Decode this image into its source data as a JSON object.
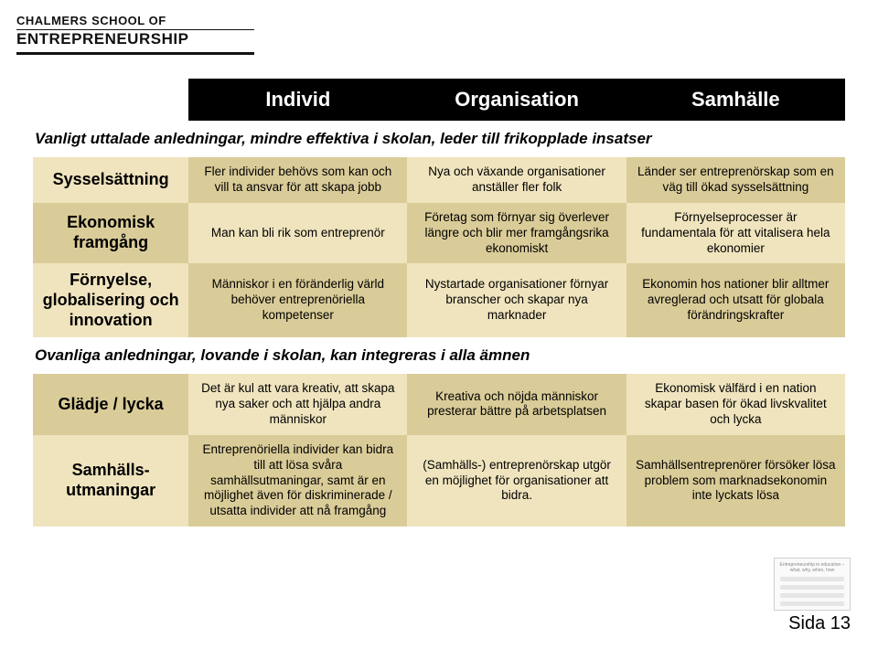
{
  "logo": {
    "top_left": "CHALMERS",
    "top_right": "SCHOOL OF",
    "bottom": "ENTREPRENEURSHIP"
  },
  "columns": {
    "c1": "Individ",
    "c2": "Organisation",
    "c3": "Samhälle"
  },
  "sub1": "Vanligt uttalade anledningar, mindre effektiva i skolan, leder till frikopplade insatser",
  "sub2": "Ovanliga anledningar, lovande i skolan, kan integreras i alla ämnen",
  "rows": {
    "r1": {
      "label": "Sysselsättning",
      "c1": "Fler individer behövs som kan och vill ta ansvar för att skapa jobb",
      "c2": "Nya och växande organisationer anställer fler folk",
      "c3": "Länder ser entreprenörskap som en väg till ökad sysselsättning"
    },
    "r2": {
      "label": "Ekonomisk framgång",
      "c1": "Man kan bli rik som entreprenör",
      "c2": "Företag som förnyar sig överlever längre och blir mer framgångsrika ekonomiskt",
      "c3": "Förnyelseprocesser är fundamentala för att vitalisera hela ekonomier"
    },
    "r3": {
      "label": "Förnyelse, globalisering och innovation",
      "c1": "Människor i en föränderlig värld behöver entreprenöriella kompetenser",
      "c2": "Nystartade organisationer förnyar branscher och skapar nya marknader",
      "c3": "Ekonomin hos nationer blir alltmer avreglerad och utsatt för globala förändringskrafter"
    },
    "r4": {
      "label": "Glädje / lycka",
      "c1": "Det är kul att vara kreativ, att skapa nya saker och att hjälpa andra människor",
      "c2": "Kreativa och nöjda människor presterar bättre på arbetsplatsen",
      "c3": "Ekonomisk välfärd i en nation skapar basen för ökad livskvalitet och lycka"
    },
    "r5": {
      "label": "Samhälls- utmaningar",
      "c1": "Entreprenöriella individer kan bidra till att lösa svåra samhällsutmaningar, samt är en möjlighet även för diskriminerade / utsatta individer att nå framgång",
      "c2": "(Samhälls-) entreprenörskap utgör en möjlighet för organisationer att bidra.",
      "c3": "Samhällsentreprenörer försöker lösa problem som marknadsekonomin inte lyckats lösa"
    }
  },
  "thumb_title": "Entrepreneurship in education – what, why, when, how",
  "page_number": "Sida 13",
  "colors": {
    "header_bg": "#000000",
    "header_fg": "#ffffff",
    "band_a": "#f0e4be",
    "band_b": "#dacc98",
    "text": "#000000"
  }
}
